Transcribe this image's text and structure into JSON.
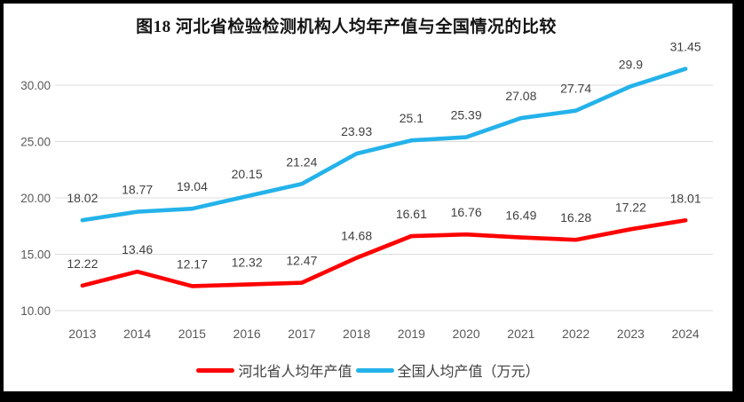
{
  "chart_data": {
    "type": "line",
    "title": "图18  河北省检验检测机构人均年产值与全国情况的比较",
    "categories": [
      "2013",
      "2014",
      "2015",
      "2016",
      "2017",
      "2018",
      "2019",
      "2020",
      "2021",
      "2022",
      "2023",
      "2024"
    ],
    "series": [
      {
        "name": "河北省人均年产值",
        "color": "#fe0000",
        "values": [
          12.22,
          13.46,
          12.17,
          12.32,
          12.47,
          14.68,
          16.61,
          16.76,
          16.49,
          16.28,
          17.22,
          18.01
        ],
        "labels": [
          "12.22",
          "13.46",
          "12.17",
          "12.32",
          "12.47",
          "14.68",
          "16.61",
          "16.76",
          "16.49",
          "16.28",
          "17.22",
          "18.01"
        ]
      },
      {
        "name": "全国人均产值（万元）",
        "color": "#24b2ea",
        "values": [
          18.02,
          18.77,
          19.04,
          20.15,
          21.24,
          23.93,
          25.1,
          25.39,
          27.08,
          27.74,
          29.9,
          31.45
        ],
        "labels": [
          "18.02",
          "18.77",
          "19.04",
          "20.15",
          "21.24",
          "23.93",
          "25.1",
          "25.39",
          "27.08",
          "27.74",
          "29.9",
          "31.45"
        ]
      }
    ],
    "y_axis": {
      "min": 10,
      "max": 30,
      "ticks": [
        {
          "value": 30,
          "label": "30.00"
        },
        {
          "value": 25,
          "label": "25.00"
        },
        {
          "value": 20,
          "label": "20.00"
        },
        {
          "value": 15,
          "label": "15.00"
        },
        {
          "value": 10,
          "label": "10.00"
        }
      ]
    },
    "grid": "horizontal",
    "legend_position": "bottom",
    "xlabel": "",
    "ylabel": ""
  }
}
